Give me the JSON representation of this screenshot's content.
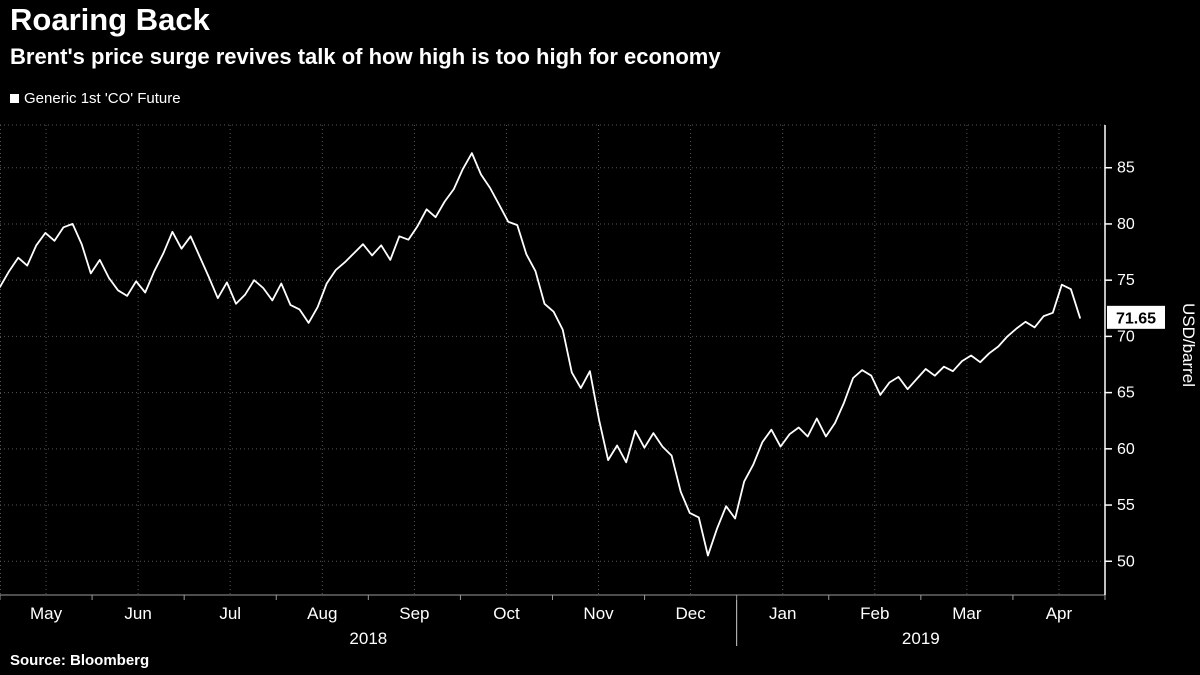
{
  "header": {
    "title": "Roaring Back",
    "subtitle": "Brent's price surge revives talk of how high is too high for economy"
  },
  "legend": {
    "label": "Generic 1st 'CO' Future",
    "marker_color": "#ffffff"
  },
  "source": {
    "label": "Source: Bloomberg"
  },
  "chart_data": {
    "type": "line",
    "title": "Roaring Back",
    "series_name": "Generic 1st 'CO' Future",
    "xlabel": "",
    "ylabel": "USD/barrel",
    "last_price": "71.65",
    "yticks": [
      50,
      55,
      60,
      65,
      70,
      75,
      80,
      85
    ],
    "ylim": [
      47.0,
      88.8
    ],
    "grid": true,
    "legend_position": "top-left",
    "x_months": [
      "May",
      "Jun",
      "Jul",
      "Aug",
      "Sep",
      "Oct",
      "Nov",
      "Dec",
      "Jan",
      "Feb",
      "Mar",
      "Apr"
    ],
    "year_groups": [
      {
        "label": "2018",
        "from_month": 0,
        "to_month": 8
      },
      {
        "label": "2019",
        "from_month": 8,
        "to_month": 12
      }
    ],
    "values": [
      74.4,
      75.8,
      77.0,
      76.3,
      78.1,
      79.2,
      78.5,
      79.7,
      80.0,
      78.2,
      75.6,
      76.8,
      75.2,
      74.1,
      73.6,
      74.9,
      73.9,
      75.8,
      77.4,
      79.3,
      77.8,
      78.9,
      77.1,
      75.3,
      73.4,
      74.8,
      72.9,
      73.7,
      75.0,
      74.3,
      73.2,
      74.7,
      72.8,
      72.4,
      71.2,
      72.6,
      74.7,
      75.9,
      76.6,
      77.4,
      78.2,
      77.2,
      78.1,
      76.8,
      78.9,
      78.6,
      79.8,
      81.3,
      80.6,
      82.0,
      83.1,
      84.9,
      86.3,
      84.4,
      83.2,
      81.7,
      80.2,
      79.9,
      77.3,
      75.8,
      72.9,
      72.2,
      70.6,
      66.8,
      65.4,
      66.9,
      62.6,
      59.0,
      60.3,
      58.8,
      61.6,
      60.1,
      61.4,
      60.2,
      59.4,
      56.2,
      54.3,
      53.9,
      50.5,
      52.9,
      54.9,
      53.8,
      57.1,
      58.6,
      60.6,
      61.7,
      60.2,
      61.3,
      61.9,
      61.1,
      62.7,
      61.1,
      62.3,
      64.1,
      66.3,
      67.0,
      66.5,
      64.8,
      65.9,
      66.4,
      65.3,
      66.2,
      67.1,
      66.5,
      67.3,
      66.9,
      67.8,
      68.3,
      67.7,
      68.5,
      69.1,
      70.0,
      70.7,
      71.3,
      70.8,
      71.8,
      72.1,
      74.6,
      74.2,
      71.65
    ],
    "line_color": "#ffffff",
    "grid_color": "#565656",
    "axis_color": "#ffffff",
    "flag_bg": "#ffffff",
    "flag_text": "#000000"
  }
}
